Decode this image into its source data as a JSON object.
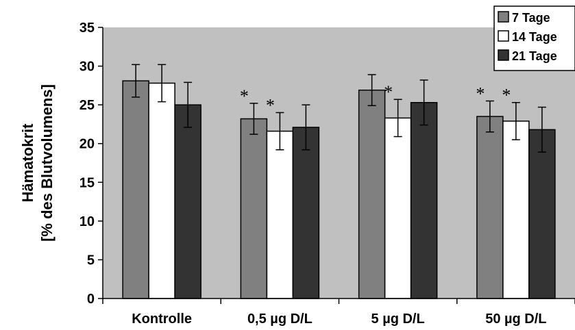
{
  "colors": {
    "plot_background": "#c0c0c0",
    "series_7": "#808080",
    "series_14": "#ffffff",
    "series_21": "#333333"
  },
  "chart_data": {
    "type": "bar",
    "ylabel": [
      "Hämatokrit",
      "[% des Blutvolumens]"
    ],
    "ylim": [
      0,
      35
    ],
    "yticks": [
      0,
      5,
      10,
      15,
      20,
      25,
      30,
      35
    ],
    "categories": [
      "Kontrolle",
      "0,5 µg D/L",
      "5 µg D/L",
      "50 µg D/L"
    ],
    "series": [
      {
        "name": "7 Tage",
        "values": [
          28.1,
          23.2,
          26.9,
          23.5
        ],
        "errors": [
          2.1,
          2.0,
          2.0,
          2.0
        ]
      },
      {
        "name": "14 Tage",
        "values": [
          27.8,
          21.6,
          23.3,
          22.9
        ],
        "errors": [
          2.4,
          2.4,
          2.4,
          2.4
        ]
      },
      {
        "name": "21 Tage",
        "values": [
          25.0,
          22.1,
          25.3,
          21.8
        ],
        "errors": [
          2.9,
          2.9,
          2.9,
          2.9
        ]
      }
    ],
    "significance_marker": "*",
    "annotations": [
      {
        "category": 1,
        "series": 0,
        "text": "*"
      },
      {
        "category": 1,
        "series": 1,
        "text": "*"
      },
      {
        "category": 2,
        "series": 1,
        "text": "*"
      },
      {
        "category": 3,
        "series": 0,
        "text": "*"
      },
      {
        "category": 3,
        "series": 1,
        "text": "*"
      }
    ],
    "grid": false,
    "legend_position": "top-right"
  }
}
